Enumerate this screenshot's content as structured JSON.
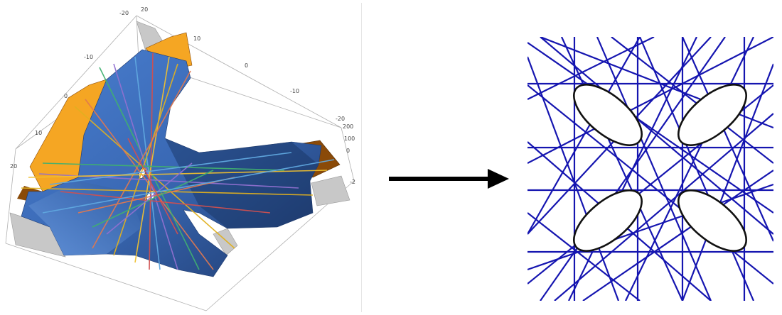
{
  "left_plot": {
    "ticks_top": [
      "-20",
      "20",
      "10",
      "0",
      "-10"
    ],
    "ticks_left": [
      "-10",
      "0",
      "10",
      "20"
    ],
    "ticks_right": [
      "-20",
      "200",
      "100",
      "0",
      "-2"
    ]
  },
  "colors": {
    "surface": "#3a69b5",
    "surface_dark": "#1e3a6e",
    "surface_light": "#5d8fd8",
    "orange": "#f5a623",
    "orange_dark": "#8a4a08",
    "gray_face": "#c8c8c8",
    "line_blue": "#1515b0",
    "curve": "#111111",
    "arrow": "#000000"
  },
  "ray_colors": [
    "#e0b020",
    "#e07850",
    "#40b070",
    "#9070d0",
    "#60a8e0",
    "#d05050",
    "#f0c030"
  ]
}
